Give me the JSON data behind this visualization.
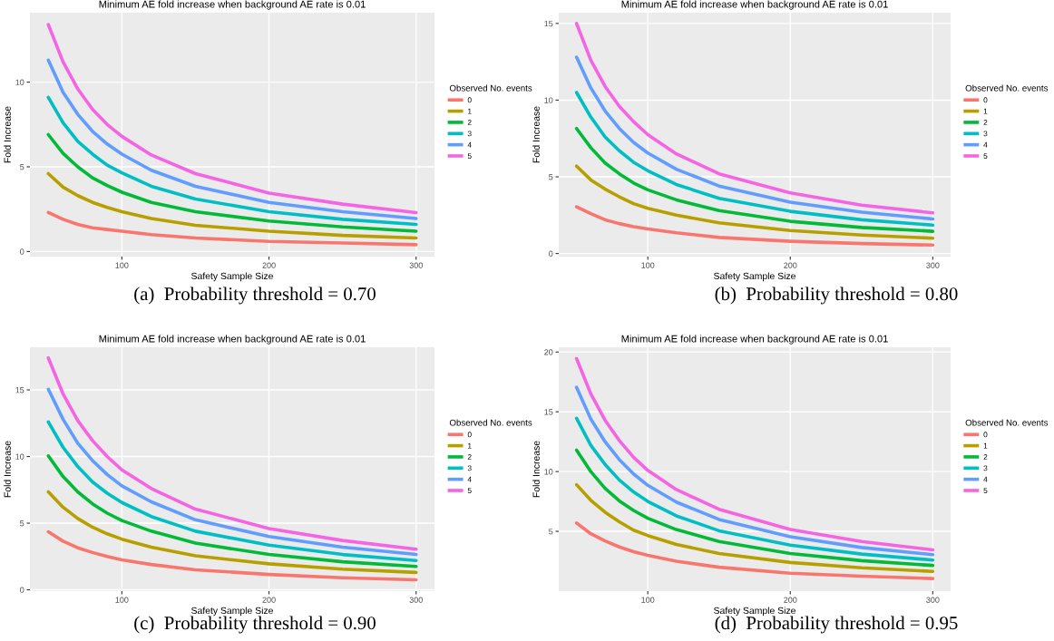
{
  "chart_data": [
    {
      "type": "line",
      "title": "Minimum AE fold increase when background AE rate is 0.01",
      "xlabel": "Safety Sample Size",
      "ylabel": "Fold Increase",
      "legend_title": "Observed No. events",
      "legend": "right",
      "grid": true,
      "annotations": [
        "(a)  Probability threshold = 0.70"
      ],
      "x": [
        50,
        60,
        70,
        80,
        90,
        100,
        120,
        150,
        200,
        250,
        300
      ],
      "xlim": [
        37.5,
        312.5
      ],
      "xticks": [
        100,
        200,
        300
      ],
      "ylim": [
        -0.3,
        14.1
      ],
      "yticks": [
        0,
        5,
        10
      ],
      "series": [
        {
          "name": "0",
          "color": "#f8766d",
          "values": [
            2.3,
            1.9,
            1.6,
            1.4,
            1.3,
            1.2,
            1.0,
            0.8,
            0.6,
            0.5,
            0.4
          ]
        },
        {
          "name": "1",
          "color": "#b79f00",
          "values": [
            4.6,
            3.8,
            3.3,
            2.9,
            2.6,
            2.35,
            1.95,
            1.55,
            1.2,
            0.95,
            0.8
          ]
        },
        {
          "name": "2",
          "color": "#00ba38",
          "values": [
            6.9,
            5.8,
            5.0,
            4.35,
            3.9,
            3.5,
            2.9,
            2.35,
            1.8,
            1.45,
            1.2
          ]
        },
        {
          "name": "3",
          "color": "#00bfc4",
          "values": [
            9.1,
            7.6,
            6.5,
            5.75,
            5.1,
            4.65,
            3.85,
            3.1,
            2.35,
            1.9,
            1.6
          ]
        },
        {
          "name": "4",
          "color": "#619cff",
          "values": [
            11.3,
            9.4,
            8.1,
            7.1,
            6.35,
            5.75,
            4.8,
            3.85,
            2.9,
            2.35,
            1.95
          ]
        },
        {
          "name": "5",
          "color": "#f564e3",
          "values": [
            13.4,
            11.2,
            9.6,
            8.4,
            7.5,
            6.8,
            5.7,
            4.6,
            3.45,
            2.8,
            2.3
          ]
        }
      ]
    },
    {
      "type": "line",
      "title": "Minimum AE fold increase when background AE rate is 0.01",
      "xlabel": "Safety Sample Size",
      "ylabel": "Fold Increase",
      "legend_title": "Observed No. events",
      "legend": "right",
      "grid": true,
      "annotations": [
        "(b)  Probability threshold = 0.80"
      ],
      "x": [
        50,
        60,
        70,
        80,
        90,
        100,
        120,
        150,
        200,
        250,
        300
      ],
      "xlim": [
        37.5,
        312.5
      ],
      "xticks": [
        100,
        200,
        300
      ],
      "ylim": [
        -0.2,
        15.7
      ],
      "yticks": [
        0,
        5,
        10,
        15
      ],
      "series": [
        {
          "name": "0",
          "color": "#f8766d",
          "values": [
            3.05,
            2.6,
            2.2,
            1.95,
            1.75,
            1.6,
            1.35,
            1.05,
            0.8,
            0.65,
            0.55
          ]
        },
        {
          "name": "1",
          "color": "#b79f00",
          "values": [
            5.7,
            4.8,
            4.2,
            3.7,
            3.25,
            2.95,
            2.5,
            2.0,
            1.5,
            1.2,
            1.0
          ]
        },
        {
          "name": "2",
          "color": "#00ba38",
          "values": [
            8.15,
            6.9,
            5.9,
            5.2,
            4.6,
            4.15,
            3.5,
            2.8,
            2.1,
            1.7,
            1.45
          ]
        },
        {
          "name": "3",
          "color": "#00bfc4",
          "values": [
            10.5,
            8.9,
            7.6,
            6.7,
            5.95,
            5.4,
            4.5,
            3.6,
            2.75,
            2.2,
            1.85
          ]
        },
        {
          "name": "4",
          "color": "#619cff",
          "values": [
            12.8,
            10.8,
            9.3,
            8.15,
            7.25,
            6.55,
            5.5,
            4.4,
            3.35,
            2.7,
            2.25
          ]
        },
        {
          "name": "5",
          "color": "#f564e3",
          "values": [
            15.0,
            12.6,
            10.9,
            9.6,
            8.6,
            7.75,
            6.5,
            5.2,
            3.95,
            3.15,
            2.65
          ]
        }
      ]
    },
    {
      "type": "line",
      "title": "Minimum AE fold increase when background AE rate is 0.01",
      "xlabel": "Safety Sample Size",
      "ylabel": "Fold Increase",
      "legend_title": "Observed No. events",
      "legend": "right",
      "grid": true,
      "annotations": [
        "(c)  Probability threshold = 0.90"
      ],
      "x": [
        50,
        60,
        70,
        80,
        90,
        100,
        120,
        150,
        200,
        250,
        300
      ],
      "xlim": [
        37.5,
        312.5
      ],
      "xticks": [
        100,
        200,
        300
      ],
      "ylim": [
        -0.1,
        18.2
      ],
      "yticks": [
        0,
        5,
        10,
        15
      ],
      "series": [
        {
          "name": "0",
          "color": "#f8766d",
          "values": [
            4.35,
            3.65,
            3.15,
            2.8,
            2.5,
            2.25,
            1.9,
            1.5,
            1.15,
            0.9,
            0.75
          ]
        },
        {
          "name": "1",
          "color": "#b79f00",
          "values": [
            7.35,
            6.2,
            5.35,
            4.7,
            4.2,
            3.8,
            3.2,
            2.55,
            1.95,
            1.55,
            1.3
          ]
        },
        {
          "name": "2",
          "color": "#00ba38",
          "values": [
            10.05,
            8.5,
            7.35,
            6.45,
            5.75,
            5.2,
            4.4,
            3.5,
            2.65,
            2.1,
            1.75
          ]
        },
        {
          "name": "3",
          "color": "#00bfc4",
          "values": [
            12.6,
            10.7,
            9.25,
            8.1,
            7.25,
            6.55,
            5.5,
            4.4,
            3.35,
            2.65,
            2.2
          ]
        },
        {
          "name": "4",
          "color": "#619cff",
          "values": [
            15.05,
            12.8,
            11.0,
            9.7,
            8.65,
            7.8,
            6.6,
            5.25,
            4.0,
            3.2,
            2.65
          ]
        },
        {
          "name": "5",
          "color": "#f564e3",
          "values": [
            17.4,
            14.7,
            12.7,
            11.2,
            10.0,
            9.0,
            7.6,
            6.05,
            4.6,
            3.7,
            3.05
          ]
        }
      ]
    },
    {
      "type": "line",
      "title": "Minimum AE fold increase when background AE rate is 0.01",
      "xlabel": "Safety Sample Size",
      "ylabel": "Fold Increase",
      "legend_title": "Observed No. events",
      "legend": "right",
      "grid": true,
      "annotations": [
        "(d)  Probability threshold = 0.95"
      ],
      "x": [
        50,
        60,
        70,
        80,
        90,
        100,
        120,
        150,
        200,
        250,
        300
      ],
      "xlim": [
        37.5,
        312.5
      ],
      "xticks": [
        100,
        200,
        300
      ],
      "ylim": [
        0.0,
        20.4
      ],
      "yticks": [
        5,
        10,
        15,
        20
      ],
      "series": [
        {
          "name": "0",
          "color": "#f8766d",
          "values": [
            5.7,
            4.8,
            4.2,
            3.7,
            3.3,
            3.0,
            2.5,
            2.0,
            1.5,
            1.25,
            1.05
          ]
        },
        {
          "name": "1",
          "color": "#b79f00",
          "values": [
            8.9,
            7.6,
            6.6,
            5.8,
            5.1,
            4.65,
            3.9,
            3.15,
            2.4,
            1.95,
            1.65
          ]
        },
        {
          "name": "2",
          "color": "#00ba38",
          "values": [
            11.8,
            10.0,
            8.6,
            7.55,
            6.75,
            6.1,
            5.15,
            4.15,
            3.15,
            2.55,
            2.15
          ]
        },
        {
          "name": "3",
          "color": "#00bfc4",
          "values": [
            14.45,
            12.2,
            10.6,
            9.3,
            8.3,
            7.5,
            6.3,
            5.05,
            3.85,
            3.1,
            2.6
          ]
        },
        {
          "name": "4",
          "color": "#619cff",
          "values": [
            17.05,
            14.4,
            12.5,
            11.0,
            9.8,
            8.85,
            7.45,
            6.0,
            4.55,
            3.65,
            3.05
          ]
        },
        {
          "name": "5",
          "color": "#f564e3",
          "values": [
            19.45,
            16.5,
            14.3,
            12.6,
            11.2,
            10.1,
            8.5,
            6.85,
            5.15,
            4.15,
            3.45
          ]
        }
      ]
    }
  ]
}
